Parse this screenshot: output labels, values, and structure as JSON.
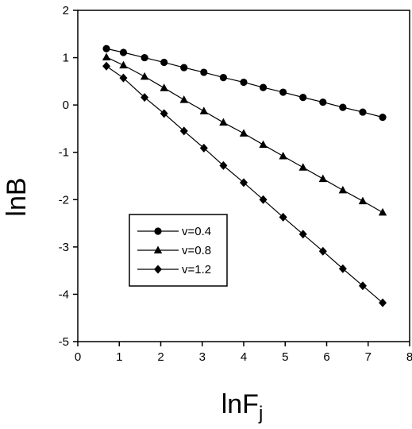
{
  "chart_data": {
    "type": "line",
    "xlabel": "lnF",
    "xlabel_sub": "j",
    "ylabel": "lnB",
    "xlim": [
      0,
      8
    ],
    "ylim": [
      -5,
      2
    ],
    "xticks": [
      0,
      1,
      2,
      3,
      4,
      5,
      6,
      7,
      8
    ],
    "yticks": [
      -5,
      -4,
      -3,
      -2,
      -1,
      0,
      1,
      2
    ],
    "grid": false,
    "legend_position": "lower-left",
    "x": [
      0.69,
      1.1,
      1.61,
      2.08,
      2.56,
      3.04,
      3.51,
      4.0,
      4.47,
      4.95,
      5.43,
      5.91,
      6.39,
      6.87,
      7.35
    ],
    "series": [
      {
        "name": "v=0.4",
        "marker": "circle",
        "values": [
          1.19,
          1.11,
          1.0,
          0.9,
          0.79,
          0.69,
          0.58,
          0.48,
          0.37,
          0.27,
          0.16,
          0.06,
          -0.05,
          -0.15,
          -0.26
        ]
      },
      {
        "name": "v=0.8",
        "marker": "triangle",
        "values": [
          1.01,
          0.84,
          0.6,
          0.36,
          0.11,
          -0.13,
          -0.37,
          -0.6,
          -0.84,
          -1.08,
          -1.32,
          -1.56,
          -1.8,
          -2.03,
          -2.27
        ]
      },
      {
        "name": "v=1.2",
        "marker": "diamond",
        "values": [
          0.82,
          0.57,
          0.16,
          -0.18,
          -0.55,
          -0.91,
          -1.28,
          -1.64,
          -2.0,
          -2.37,
          -2.73,
          -3.09,
          -3.46,
          -3.82,
          -4.18
        ]
      }
    ]
  }
}
